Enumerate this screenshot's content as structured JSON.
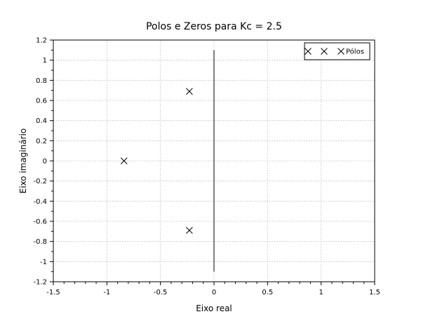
{
  "chart_data": {
    "type": "scatter",
    "title": "Polos e Zeros para Kc = 2.5",
    "xlabel": "Eixo real",
    "ylabel": "Eixo imaginário",
    "xlim": [
      -1.5,
      1.5
    ],
    "ylim": [
      -1.2,
      1.2
    ],
    "xticks": [
      "-1.5",
      "-1",
      "-0.5",
      "0",
      "0.5",
      "1",
      "1.5"
    ],
    "xtick_values": [
      -1.5,
      -1,
      -0.5,
      0,
      0.5,
      1,
      1.5
    ],
    "yticks": [
      "-1.2",
      "-1",
      "-0.8",
      "-0.6",
      "-0.4",
      "-0.2",
      "0",
      "0.2",
      "0.4",
      "0.6",
      "0.8",
      "1",
      "1.2"
    ],
    "ytick_values": [
      -1.2,
      -1,
      -0.8,
      -0.6,
      -0.4,
      -0.2,
      0,
      0.2,
      0.4,
      0.6,
      0.8,
      1,
      1.2
    ],
    "grid": true,
    "legend_position": "top-right",
    "series": [
      {
        "name": "Pólos",
        "marker": "x",
        "color": "#000000",
        "points": [
          {
            "x": -0.23,
            "y": 0.69
          },
          {
            "x": -0.84,
            "y": 0.0
          },
          {
            "x": -0.23,
            "y": -0.69
          }
        ]
      }
    ],
    "reference_line": {
      "x": 0,
      "y_range": [
        -1.1,
        1.1
      ],
      "color": "#000000"
    }
  }
}
